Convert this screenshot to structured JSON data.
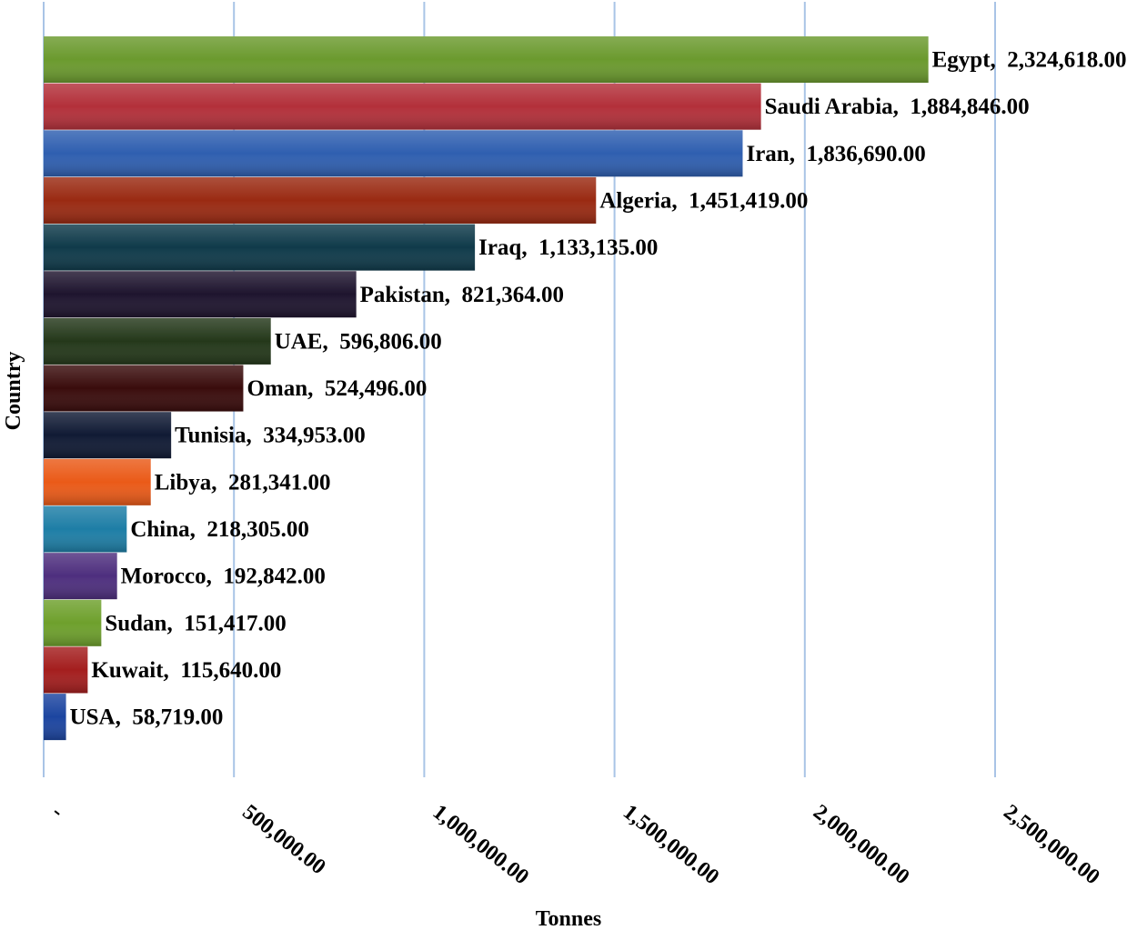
{
  "chart_data": {
    "type": "bar",
    "orientation": "horizontal",
    "title": "",
    "xlabel": "Tonnes",
    "ylabel": "Country",
    "xlim": [
      0,
      2500000
    ],
    "x_ticks": [
      0,
      500000,
      1000000,
      1500000,
      2000000,
      2500000
    ],
    "x_tick_labels": [
      "-",
      "500,000.00",
      "1,000,000.00",
      "1,500,000.00",
      "2,000,000.00",
      "2,500,000.00"
    ],
    "grid": "vertical",
    "legend": "none",
    "data_labels": true,
    "categories": [
      "Egypt",
      "Saudi Arabia",
      "Iran",
      "Algeria",
      "Iraq",
      "Pakistan",
      "UAE",
      "Oman",
      "Tunisia",
      "Libya",
      "China",
      "Morocco",
      "Sudan",
      "Kuwait",
      "USA"
    ],
    "values": [
      2324618,
      1884846,
      1836690,
      1451419,
      1133135,
      821364,
      596806,
      524496,
      334953,
      281341,
      218305,
      192842,
      151417,
      115640,
      58719
    ],
    "value_labels": [
      "2,324,618.00",
      "1,884,846.00",
      "1,836,690.00",
      "1,451,419.00",
      "1,133,135.00",
      "821,364.00",
      "596,806.00",
      "524,496.00",
      "334,953.00",
      "281,341.00",
      "218,305.00",
      "192,842.00",
      "151,417.00",
      "115,640.00",
      "58,719.00"
    ],
    "colors": [
      "#6b9a2e",
      "#b3303a",
      "#2f5fb0",
      "#9a2a12",
      "#0f3a4a",
      "#1e142e",
      "#24381a",
      "#3a0c0c",
      "#101a34",
      "#ea5a18",
      "#1e7ea6",
      "#4e2f7e",
      "#6ea02c",
      "#a41e1e",
      "#1c45a0"
    ]
  }
}
